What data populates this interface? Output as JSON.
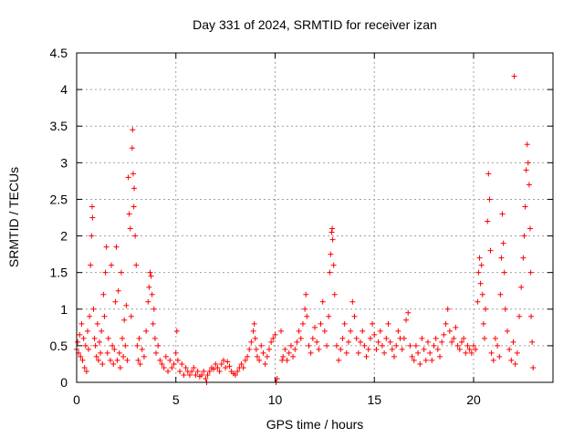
{
  "chart_data": {
    "type": "scatter",
    "title": "Day 331 of 2024, SRMTID for receiver izan",
    "xlabel": "GPS time / hours",
    "ylabel": "SRMTID / TECUs",
    "xlim": [
      0,
      24
    ],
    "ylim": [
      0,
      4.5
    ],
    "xticks": [
      0,
      5,
      10,
      15,
      20
    ],
    "xtick_labels": [
      "0",
      "5",
      "10",
      "15",
      "20"
    ],
    "yticks": [
      0,
      0.5,
      1,
      1.5,
      2,
      2.5,
      3,
      3.5,
      4,
      4.5
    ],
    "ytick_labels": [
      "0",
      "0.5",
      "1",
      "1.5",
      "2",
      "2.5",
      "3",
      "3.5",
      "4",
      "4.5"
    ],
    "grid": true,
    "marker": "+",
    "color": "#ff0000",
    "series": [
      {
        "name": "SRMTID",
        "points": [
          [
            0.0,
            0.45
          ],
          [
            0.05,
            0.55
          ],
          [
            0.1,
            0.4
          ],
          [
            0.15,
            0.65
          ],
          [
            0.2,
            0.35
          ],
          [
            0.25,
            0.8
          ],
          [
            0.3,
            0.3
          ],
          [
            0.35,
            0.6
          ],
          [
            0.4,
            0.2
          ],
          [
            0.45,
            0.5
          ],
          [
            0.5,
            0.15
          ],
          [
            0.55,
            0.7
          ],
          [
            0.6,
            0.45
          ],
          [
            0.65,
            0.9
          ],
          [
            0.7,
            1.6
          ],
          [
            0.75,
            2.0
          ],
          [
            0.78,
            2.4
          ],
          [
            0.8,
            2.25
          ],
          [
            0.85,
            1.0
          ],
          [
            0.9,
            0.6
          ],
          [
            0.95,
            0.5
          ],
          [
            1.0,
            0.35
          ],
          [
            1.05,
            0.8
          ],
          [
            1.1,
            0.3
          ],
          [
            1.15,
            0.55
          ],
          [
            1.2,
            0.4
          ],
          [
            1.25,
            0.7
          ],
          [
            1.3,
            0.25
          ],
          [
            1.35,
            1.2
          ],
          [
            1.4,
            0.9
          ],
          [
            1.45,
            1.5
          ],
          [
            1.5,
            1.85
          ],
          [
            1.55,
            0.4
          ],
          [
            1.6,
            0.6
          ],
          [
            1.7,
            0.3
          ],
          [
            1.75,
            1.6
          ],
          [
            1.8,
            0.5
          ],
          [
            1.85,
            0.25
          ],
          [
            1.9,
            0.45
          ],
          [
            1.95,
            1.1
          ],
          [
            2.0,
            1.85
          ],
          [
            2.05,
            0.3
          ],
          [
            2.1,
            1.25
          ],
          [
            2.15,
            0.4
          ],
          [
            2.2,
            0.2
          ],
          [
            2.25,
            1.5
          ],
          [
            2.3,
            0.6
          ],
          [
            2.35,
            0.35
          ],
          [
            2.4,
            0.85
          ],
          [
            2.45,
            0.5
          ],
          [
            2.5,
            1.05
          ],
          [
            2.55,
            0.3
          ],
          [
            2.6,
            2.8
          ],
          [
            2.65,
            2.3
          ],
          [
            2.7,
            2.1
          ],
          [
            2.75,
            0.9
          ],
          [
            2.8,
            3.2
          ],
          [
            2.82,
            3.45
          ],
          [
            2.85,
            2.85
          ],
          [
            2.88,
            2.4
          ],
          [
            2.9,
            2.65
          ],
          [
            2.95,
            2.0
          ],
          [
            3.0,
            1.6
          ],
          [
            3.05,
            0.5
          ],
          [
            3.1,
            0.3
          ],
          [
            3.15,
            0.6
          ],
          [
            3.2,
            0.25
          ],
          [
            3.3,
            0.45
          ],
          [
            3.4,
            0.35
          ],
          [
            3.5,
            0.7
          ],
          [
            3.6,
            1.1
          ],
          [
            3.65,
            1.3
          ],
          [
            3.7,
            1.5
          ],
          [
            3.75,
            1.45
          ],
          [
            3.8,
            1.2
          ],
          [
            3.85,
            0.8
          ],
          [
            3.9,
            1.0
          ],
          [
            3.95,
            0.6
          ],
          [
            4.0,
            0.4
          ],
          [
            4.1,
            0.5
          ],
          [
            4.2,
            0.3
          ],
          [
            4.3,
            0.25
          ],
          [
            4.4,
            0.2
          ],
          [
            4.5,
            0.35
          ],
          [
            4.6,
            0.15
          ],
          [
            4.7,
            0.3
          ],
          [
            4.8,
            0.2
          ],
          [
            4.9,
            0.25
          ],
          [
            5.0,
            0.4
          ],
          [
            5.05,
            0.7
          ],
          [
            5.1,
            0.3
          ],
          [
            5.2,
            0.15
          ],
          [
            5.3,
            0.25
          ],
          [
            5.4,
            0.1
          ],
          [
            5.5,
            0.2
          ],
          [
            5.6,
            0.15
          ],
          [
            5.7,
            0.1
          ],
          [
            5.8,
            0.15
          ],
          [
            5.9,
            0.2
          ],
          [
            6.0,
            0.1
          ],
          [
            6.1,
            0.15
          ],
          [
            6.2,
            0.08
          ],
          [
            6.3,
            0.1
          ],
          [
            6.4,
            0.15
          ],
          [
            6.5,
            0.05
          ],
          [
            6.55,
            0.0
          ],
          [
            6.6,
            0.1
          ],
          [
            6.7,
            0.15
          ],
          [
            6.8,
            0.2
          ],
          [
            6.9,
            0.18
          ],
          [
            7.0,
            0.25
          ],
          [
            7.1,
            0.2
          ],
          [
            7.2,
            0.15
          ],
          [
            7.3,
            0.25
          ],
          [
            7.4,
            0.3
          ],
          [
            7.5,
            0.2
          ],
          [
            7.6,
            0.28
          ],
          [
            7.7,
            0.22
          ],
          [
            7.8,
            0.15
          ],
          [
            7.9,
            0.12
          ],
          [
            8.0,
            0.1
          ],
          [
            8.1,
            0.15
          ],
          [
            8.2,
            0.2
          ],
          [
            8.3,
            0.25
          ],
          [
            8.4,
            0.2
          ],
          [
            8.5,
            0.3
          ],
          [
            8.6,
            0.35
          ],
          [
            8.7,
            0.45
          ],
          [
            8.8,
            0.55
          ],
          [
            8.9,
            0.7
          ],
          [
            8.95,
            0.8
          ],
          [
            9.0,
            0.6
          ],
          [
            9.05,
            0.45
          ],
          [
            9.1,
            0.35
          ],
          [
            9.2,
            0.3
          ],
          [
            9.3,
            0.5
          ],
          [
            9.4,
            0.4
          ],
          [
            9.5,
            0.25
          ],
          [
            9.6,
            0.35
          ],
          [
            9.7,
            0.45
          ],
          [
            9.8,
            0.55
          ],
          [
            9.9,
            0.6
          ],
          [
            10.0,
            0.65
          ],
          [
            10.05,
            0.0
          ],
          [
            10.1,
            0.05
          ],
          [
            10.3,
            0.7
          ],
          [
            10.35,
            0.3
          ],
          [
            10.4,
            0.35
          ],
          [
            10.5,
            0.45
          ],
          [
            10.6,
            0.3
          ],
          [
            10.7,
            0.4
          ],
          [
            10.8,
            0.5
          ],
          [
            10.9,
            0.35
          ],
          [
            11.0,
            0.45
          ],
          [
            11.1,
            0.55
          ],
          [
            11.2,
            0.7
          ],
          [
            11.3,
            0.6
          ],
          [
            11.4,
            0.8
          ],
          [
            11.5,
            1.0
          ],
          [
            11.55,
            1.2
          ],
          [
            11.6,
            0.9
          ],
          [
            11.7,
            0.5
          ],
          [
            11.8,
            0.4
          ],
          [
            11.9,
            0.6
          ],
          [
            12.0,
            0.75
          ],
          [
            12.1,
            0.55
          ],
          [
            12.2,
            0.45
          ],
          [
            12.3,
            0.8
          ],
          [
            12.4,
            1.1
          ],
          [
            12.5,
            0.7
          ],
          [
            12.6,
            0.5
          ],
          [
            12.7,
            0.9
          ],
          [
            12.75,
            1.5
          ],
          [
            12.8,
            1.75
          ],
          [
            12.85,
            2.05
          ],
          [
            12.88,
            2.1
          ],
          [
            12.9,
            1.95
          ],
          [
            12.95,
            1.6
          ],
          [
            13.0,
            1.2
          ],
          [
            13.1,
            0.5
          ],
          [
            13.2,
            0.3
          ],
          [
            13.3,
            0.45
          ],
          [
            13.4,
            0.6
          ],
          [
            13.5,
            0.8
          ],
          [
            13.6,
            0.4
          ],
          [
            13.7,
            0.55
          ],
          [
            13.8,
            0.7
          ],
          [
            13.9,
            1.1
          ],
          [
            14.0,
            0.9
          ],
          [
            14.1,
            0.6
          ],
          [
            14.2,
            0.4
          ],
          [
            14.3,
            0.55
          ],
          [
            14.4,
            0.7
          ],
          [
            14.5,
            0.5
          ],
          [
            14.6,
            0.35
          ],
          [
            14.7,
            0.45
          ],
          [
            14.8,
            0.6
          ],
          [
            14.9,
            0.8
          ],
          [
            15.0,
            0.65
          ],
          [
            15.1,
            0.45
          ],
          [
            15.2,
            0.55
          ],
          [
            15.3,
            0.7
          ],
          [
            15.4,
            0.5
          ],
          [
            15.5,
            0.4
          ],
          [
            15.6,
            0.6
          ],
          [
            15.7,
            0.8
          ],
          [
            15.8,
            0.55
          ],
          [
            15.9,
            0.45
          ],
          [
            16.0,
            0.35
          ],
          [
            16.1,
            0.5
          ],
          [
            16.2,
            0.7
          ],
          [
            16.3,
            0.6
          ],
          [
            16.4,
            0.45
          ],
          [
            16.5,
            0.6
          ],
          [
            16.6,
            0.85
          ],
          [
            16.7,
            0.95
          ],
          [
            16.8,
            0.5
          ],
          [
            16.9,
            0.35
          ],
          [
            17.0,
            0.3
          ],
          [
            17.1,
            0.5
          ],
          [
            17.2,
            0.4
          ],
          [
            17.3,
            0.25
          ],
          [
            17.4,
            0.6
          ],
          [
            17.5,
            0.45
          ],
          [
            17.6,
            0.3
          ],
          [
            17.7,
            0.55
          ],
          [
            17.8,
            0.4
          ],
          [
            17.9,
            0.3
          ],
          [
            18.0,
            0.5
          ],
          [
            18.1,
            0.6
          ],
          [
            18.2,
            0.45
          ],
          [
            18.3,
            0.35
          ],
          [
            18.4,
            0.55
          ],
          [
            18.5,
            0.65
          ],
          [
            18.6,
            0.8
          ],
          [
            18.7,
            1.0
          ],
          [
            18.8,
            0.7
          ],
          [
            18.9,
            0.55
          ],
          [
            19.0,
            0.6
          ],
          [
            19.1,
            0.75
          ],
          [
            19.2,
            0.5
          ],
          [
            19.3,
            0.45
          ],
          [
            19.4,
            0.55
          ],
          [
            19.5,
            0.6
          ],
          [
            19.6,
            0.4
          ],
          [
            19.7,
            0.5
          ],
          [
            19.8,
            0.45
          ],
          [
            19.9,
            0.4
          ],
          [
            20.0,
            0.5
          ],
          [
            20.1,
            0.45
          ],
          [
            20.2,
            1.1
          ],
          [
            20.25,
            1.5
          ],
          [
            20.3,
            1.7
          ],
          [
            20.35,
            1.35
          ],
          [
            20.4,
            1.6
          ],
          [
            20.45,
            1.2
          ],
          [
            20.5,
            0.8
          ],
          [
            20.55,
            0.6
          ],
          [
            20.6,
            1.0
          ],
          [
            20.7,
            2.2
          ],
          [
            20.75,
            2.85
          ],
          [
            20.8,
            2.5
          ],
          [
            20.85,
            1.8
          ],
          [
            20.9,
            0.4
          ],
          [
            21.0,
            0.3
          ],
          [
            21.1,
            0.6
          ],
          [
            21.2,
            0.5
          ],
          [
            21.3,
            0.35
          ],
          [
            21.35,
            1.2
          ],
          [
            21.4,
            1.7
          ],
          [
            21.45,
            2.3
          ],
          [
            21.5,
            1.9
          ],
          [
            21.55,
            1.5
          ],
          [
            21.6,
            1.0
          ],
          [
            21.7,
            0.7
          ],
          [
            21.8,
            0.45
          ],
          [
            21.9,
            0.3
          ],
          [
            22.0,
            0.55
          ],
          [
            22.05,
            4.18
          ],
          [
            22.1,
            0.25
          ],
          [
            22.2,
            0.4
          ],
          [
            22.3,
            0.9
          ],
          [
            22.4,
            1.3
          ],
          [
            22.5,
            1.7
          ],
          [
            22.55,
            2.0
          ],
          [
            22.6,
            2.4
          ],
          [
            22.65,
            2.9
          ],
          [
            22.7,
            3.25
          ],
          [
            22.75,
            3.0
          ],
          [
            22.8,
            2.7
          ],
          [
            22.85,
            2.1
          ],
          [
            22.88,
            1.5
          ],
          [
            22.9,
            0.9
          ],
          [
            22.95,
            0.55
          ],
          [
            23.0,
            0.2
          ]
        ]
      }
    ]
  }
}
